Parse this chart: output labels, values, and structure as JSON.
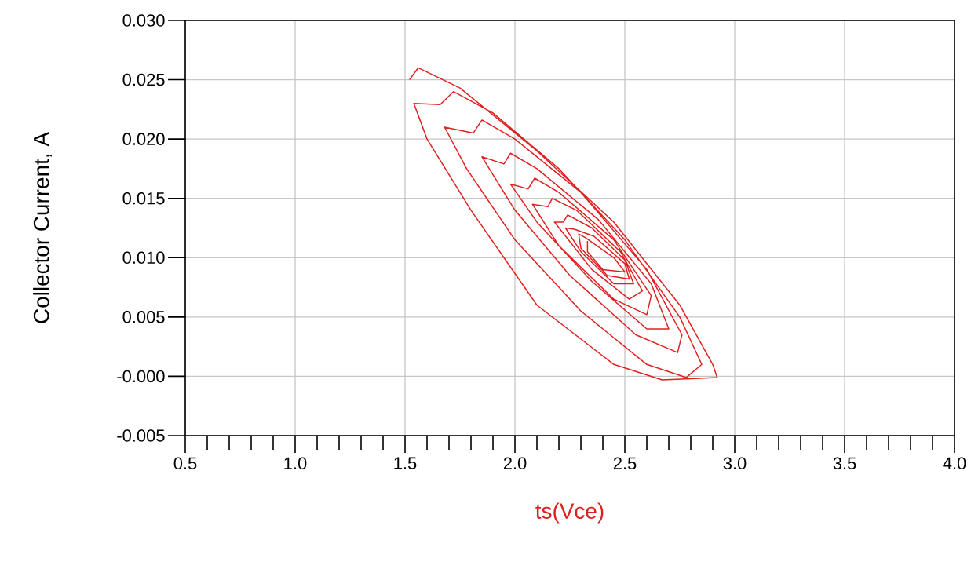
{
  "chart_data": {
    "type": "line",
    "xlabel": "ts(Vce)",
    "ylabel": "Collector Current, A",
    "xlim": [
      0.5,
      4.0
    ],
    "ylim": [
      -0.005,
      0.03
    ],
    "xticks": [
      {
        "value": 0.5,
        "label": "0.5"
      },
      {
        "value": 1.0,
        "label": "1.0"
      },
      {
        "value": 1.5,
        "label": "1.5"
      },
      {
        "value": 2.0,
        "label": "2.0"
      },
      {
        "value": 2.5,
        "label": "2.5"
      },
      {
        "value": 3.0,
        "label": "3.0"
      },
      {
        "value": 3.5,
        "label": "3.5"
      },
      {
        "value": 4.0,
        "label": "4.0"
      }
    ],
    "yticks": [
      {
        "value": -0.005,
        "label": "-0.005"
      },
      {
        "value": 0,
        "label": "-0.000"
      },
      {
        "value": 0.005,
        "label": "0.005"
      },
      {
        "value": 0.01,
        "label": "0.010"
      },
      {
        "value": 0.015,
        "label": "0.015"
      },
      {
        "value": 0.02,
        "label": "0.020"
      },
      {
        "value": 0.025,
        "label": "0.025"
      },
      {
        "value": 0.03,
        "label": "0.030"
      }
    ],
    "grid": true,
    "line_style": "solid",
    "series": [
      {
        "color": "#e02020",
        "x": [
          1.52,
          1.56,
          1.75,
          2.1,
          2.45,
          2.75,
          2.9,
          2.92,
          2.8,
          2.67,
          2.45,
          2.1,
          1.8,
          1.6,
          1.54,
          1.66,
          1.72,
          1.9,
          2.2,
          2.5,
          2.75,
          2.85,
          2.78,
          2.6,
          2.3,
          2.0,
          1.78,
          1.68,
          1.81,
          1.85,
          2.0,
          2.3,
          2.6,
          2.76,
          2.74,
          2.55,
          2.25,
          2.0,
          1.85,
          1.95,
          1.98,
          2.1,
          2.38,
          2.62,
          2.7,
          2.6,
          2.35,
          2.1,
          1.98,
          2.06,
          2.09,
          2.2,
          2.45,
          2.62,
          2.6,
          2.45,
          2.2,
          2.08,
          2.15,
          2.17,
          2.28,
          2.48,
          2.58,
          2.52,
          2.35,
          2.18,
          2.22,
          2.24,
          2.35,
          2.5,
          2.54,
          2.45,
          2.3,
          2.23,
          2.27,
          2.36,
          2.5,
          2.52,
          2.42,
          2.3,
          2.29,
          2.32,
          2.45,
          2.5,
          2.4,
          2.33,
          2.33
        ],
        "values": [
          0.025,
          0.026,
          0.0243,
          0.019,
          0.013,
          0.006,
          0.001,
          -0.0001,
          -0.0002,
          -0.0003,
          0.001,
          0.006,
          0.014,
          0.02,
          0.023,
          0.0229,
          0.024,
          0.0222,
          0.0175,
          0.0115,
          0.005,
          0.001,
          -0.0001,
          0.001,
          0.0055,
          0.0115,
          0.0175,
          0.021,
          0.0205,
          0.0216,
          0.02,
          0.0155,
          0.009,
          0.0035,
          0.002,
          0.0035,
          0.0085,
          0.014,
          0.0185,
          0.0179,
          0.0188,
          0.0175,
          0.0132,
          0.0078,
          0.004,
          0.004,
          0.008,
          0.013,
          0.0162,
          0.0158,
          0.0167,
          0.0155,
          0.0115,
          0.0068,
          0.0052,
          0.0065,
          0.011,
          0.0145,
          0.0143,
          0.015,
          0.014,
          0.0105,
          0.0072,
          0.0065,
          0.009,
          0.013,
          0.013,
          0.0136,
          0.0125,
          0.0098,
          0.0078,
          0.0078,
          0.0105,
          0.0125,
          0.0124,
          0.0118,
          0.0095,
          0.0082,
          0.0085,
          0.0108,
          0.012,
          0.0117,
          0.01,
          0.0088,
          0.009,
          0.0105,
          0.0114
        ]
      }
    ]
  }
}
